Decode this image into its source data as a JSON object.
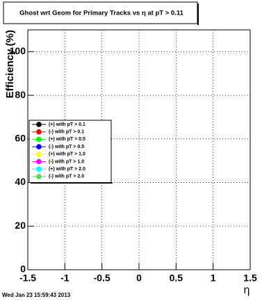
{
  "chart_data": {
    "type": "scatter",
    "title": "Ghost wrt Geom for Primary Tracks vs η at pT > 0.11",
    "x_label": "η",
    "y_label": "Efficiency (%)",
    "xlim": [
      -1.5,
      1.5
    ],
    "xticks": [
      -1.5,
      -1,
      -0.5,
      0,
      0.5,
      1,
      1.5
    ],
    "ylim": [
      0,
      110
    ],
    "yticks": [
      0,
      20,
      40,
      60,
      80,
      100
    ],
    "grid": true,
    "series": [
      {
        "name": "(+) with pT > 0.1",
        "color": "#000000",
        "x": [],
        "values": []
      },
      {
        "name": "(-) with pT > 0.1",
        "color": "#ff0000",
        "x": [],
        "values": []
      },
      {
        "name": "(+) with pT > 0.5",
        "color": "#00ff00",
        "x": [],
        "values": []
      },
      {
        "name": "(-) with pT > 0.5",
        "color": "#0000ff",
        "x": [],
        "values": []
      },
      {
        "name": "(+) with pT > 1.0",
        "color": "#ffff00",
        "x": [],
        "values": []
      },
      {
        "name": "(-) with pT > 1.0",
        "color": "#ff00ff",
        "x": [],
        "values": []
      },
      {
        "name": "(+) with pT > 2.0",
        "color": "#00ffff",
        "x": [],
        "values": []
      },
      {
        "name": "(-) with pT > 2.0",
        "color": "#59d454",
        "x": [],
        "values": []
      }
    ],
    "footer": "Wed Jan 23 15:59:43 2013"
  }
}
